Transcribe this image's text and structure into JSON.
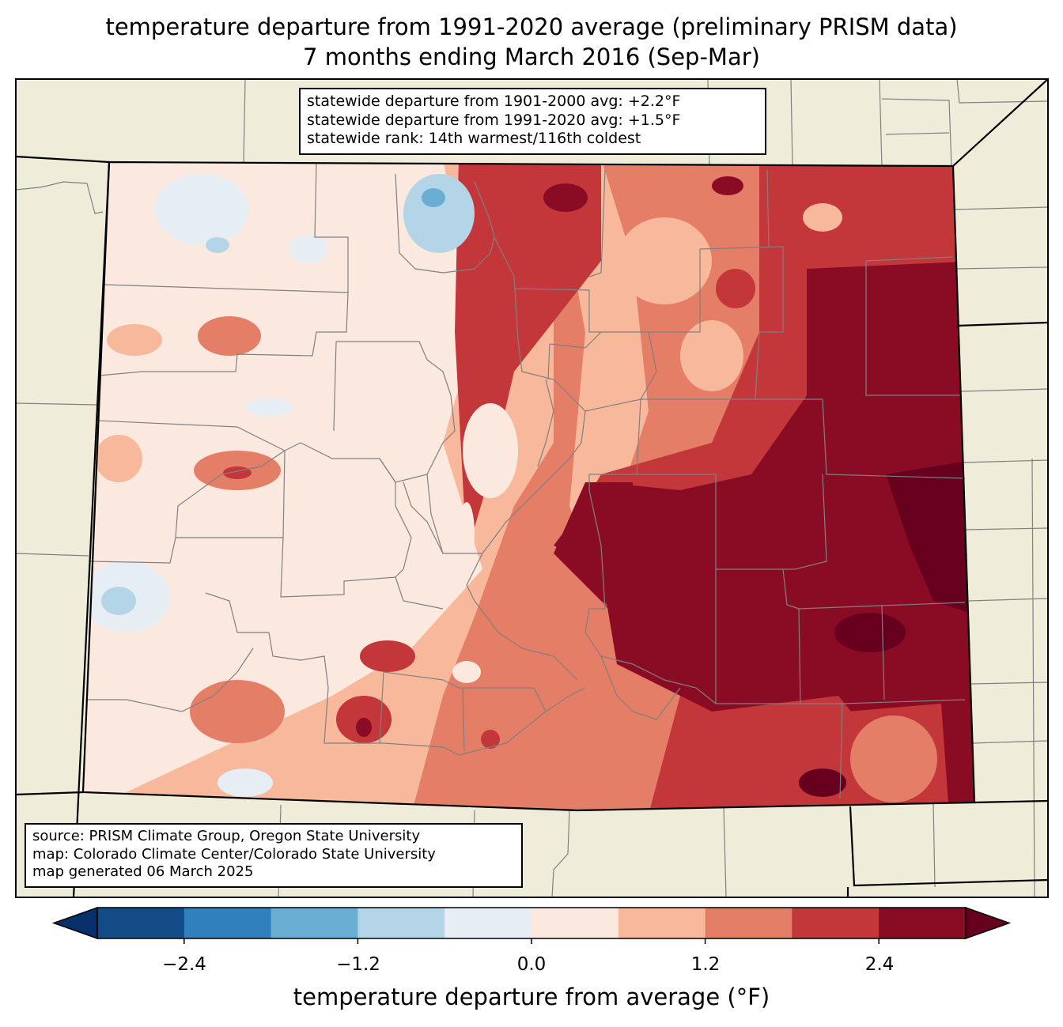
{
  "title": {
    "line1": "temperature departure from 1991-2020 average (preliminary PRISM data)",
    "line2": "7 months ending March 2016 (Sep-Mar)"
  },
  "stats_box": {
    "line1": "statewide departure from 1901-2000 avg: +2.2°F",
    "line2": "statewide departure from 1991-2020 avg: +1.5°F",
    "line3": "statewide rank: 14th warmest/116th coldest"
  },
  "source_box": {
    "line1": "source: PRISM Climate Group, Oregon State University",
    "line2": "map: Colorado Climate Center/Colorado State University",
    "line3": "map generated 06 March 2025"
  },
  "colorbar": {
    "label": "temperature departure from average (°F)",
    "tick_labels": [
      "−2.4",
      "−1.2",
      "0.0",
      "1.2",
      "2.4"
    ],
    "tick_values": [
      -2.4,
      -1.2,
      0.0,
      1.2,
      2.4
    ],
    "range": [
      -3.0,
      3.0
    ],
    "step": 0.6,
    "colors": [
      "#08306b",
      "#134b87",
      "#3080bd",
      "#6aaed4",
      "#b3d5e7",
      "#e6eef4",
      "#fbe8df",
      "#f7b89c",
      "#e47e66",
      "#c3363a",
      "#8a0c24",
      "#67001f"
    ]
  },
  "map_colors": {
    "land_background": "#efedda",
    "boundary": "#000000",
    "county_lines": "#808080"
  }
}
